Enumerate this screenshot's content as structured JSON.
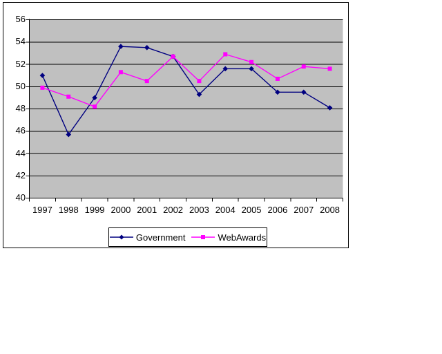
{
  "chart_data": {
    "type": "line",
    "title": "",
    "xlabel": "",
    "ylabel": "",
    "categories": [
      "1997",
      "1998",
      "1999",
      "2000",
      "2001",
      "2002",
      "2003",
      "2004",
      "2005",
      "2006",
      "2007",
      "2008"
    ],
    "series": [
      {
        "name": "Government",
        "color": "#000080",
        "marker": "diamond",
        "values": [
          51.0,
          45.7,
          49.0,
          53.6,
          53.5,
          52.7,
          49.3,
          51.6,
          51.6,
          49.5,
          49.5,
          48.1
        ]
      },
      {
        "name": "WebAwards",
        "color": "#FF00FF",
        "marker": "square",
        "values": [
          49.9,
          49.1,
          48.2,
          51.3,
          50.5,
          52.7,
          50.5,
          52.9,
          52.2,
          50.7,
          51.8,
          51.6
        ]
      }
    ],
    "ylim": [
      40,
      56
    ],
    "ytick_step": 2,
    "yticks": [
      56,
      54,
      52,
      50,
      48,
      46,
      44,
      42,
      40
    ],
    "grid": true,
    "gridline_color": "#000000",
    "plot_bg": "#C0C0C0",
    "legend_position": "bottom"
  }
}
